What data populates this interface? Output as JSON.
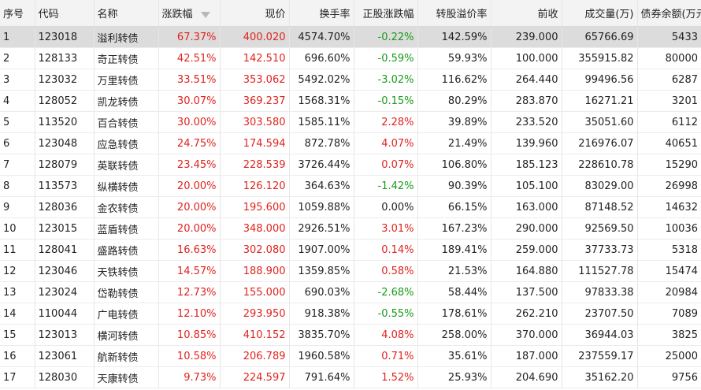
{
  "colors": {
    "up": "#e0231d",
    "down": "#1a9a1a",
    "flat": "#222222"
  },
  "headers": [
    "序号",
    "代码",
    "名称",
    "涨跌幅",
    "现价",
    "换手率",
    "正股涨跌幅",
    "转股溢价率",
    "前收",
    "成交量(万)",
    "债券余额(万元)"
  ],
  "sort_icon": "sort-descending-icon",
  "rows": [
    {
      "idx": "1",
      "code": "123018",
      "name": "溢利转债",
      "chg": "67.37%",
      "price": "400.020",
      "turnover": "4574.70%",
      "stock_chg": "-0.22%",
      "premium": "142.59%",
      "prev": "239.000",
      "volume": "65766.69",
      "balance": "5433"
    },
    {
      "idx": "2",
      "code": "128133",
      "name": "奇正转债",
      "chg": "42.51%",
      "price": "142.510",
      "turnover": "696.60%",
      "stock_chg": "-0.59%",
      "premium": "59.93%",
      "prev": "100.000",
      "volume": "355915.82",
      "balance": "80000"
    },
    {
      "idx": "3",
      "code": "123032",
      "name": "万里转债",
      "chg": "33.51%",
      "price": "353.062",
      "turnover": "5492.02%",
      "stock_chg": "-3.02%",
      "premium": "116.62%",
      "prev": "264.440",
      "volume": "99496.56",
      "balance": "6287"
    },
    {
      "idx": "4",
      "code": "128052",
      "name": "凯龙转债",
      "chg": "30.07%",
      "price": "369.237",
      "turnover": "1568.31%",
      "stock_chg": "-0.15%",
      "premium": "80.29%",
      "prev": "283.870",
      "volume": "16271.21",
      "balance": "3201"
    },
    {
      "idx": "5",
      "code": "113520",
      "name": "百合转债",
      "chg": "30.00%",
      "price": "303.580",
      "turnover": "1585.11%",
      "stock_chg": "2.28%",
      "premium": "39.89%",
      "prev": "233.520",
      "volume": "35051.60",
      "balance": "6112"
    },
    {
      "idx": "6",
      "code": "123048",
      "name": "应急转债",
      "chg": "24.75%",
      "price": "174.594",
      "turnover": "872.78%",
      "stock_chg": "4.07%",
      "premium": "21.49%",
      "prev": "139.960",
      "volume": "216976.07",
      "balance": "40651"
    },
    {
      "idx": "7",
      "code": "128079",
      "name": "英联转债",
      "chg": "23.45%",
      "price": "228.539",
      "turnover": "3726.44%",
      "stock_chg": "0.07%",
      "premium": "106.80%",
      "prev": "185.123",
      "volume": "228610.78",
      "balance": "15290"
    },
    {
      "idx": "8",
      "code": "113573",
      "name": "纵横转债",
      "chg": "20.00%",
      "price": "126.120",
      "turnover": "364.63%",
      "stock_chg": "-1.42%",
      "premium": "90.39%",
      "prev": "105.100",
      "volume": "83029.00",
      "balance": "26998"
    },
    {
      "idx": "9",
      "code": "128036",
      "name": "金农转债",
      "chg": "20.00%",
      "price": "195.600",
      "turnover": "1059.88%",
      "stock_chg": "0.00%",
      "premium": "66.15%",
      "prev": "163.000",
      "volume": "87148.52",
      "balance": "14632"
    },
    {
      "idx": "10",
      "code": "123015",
      "name": "蓝盾转债",
      "chg": "20.00%",
      "price": "348.000",
      "turnover": "2926.51%",
      "stock_chg": "3.01%",
      "premium": "167.23%",
      "prev": "290.000",
      "volume": "92569.50",
      "balance": "10036"
    },
    {
      "idx": "11",
      "code": "128041",
      "name": "盛路转债",
      "chg": "16.63%",
      "price": "302.080",
      "turnover": "1907.00%",
      "stock_chg": "0.14%",
      "premium": "189.41%",
      "prev": "259.000",
      "volume": "37733.73",
      "balance": "5318"
    },
    {
      "idx": "12",
      "code": "123046",
      "name": "天铁转债",
      "chg": "14.57%",
      "price": "188.900",
      "turnover": "1359.85%",
      "stock_chg": "0.58%",
      "premium": "21.53%",
      "prev": "164.880",
      "volume": "111527.78",
      "balance": "15474"
    },
    {
      "idx": "13",
      "code": "123024",
      "name": "岱勒转债",
      "chg": "12.73%",
      "price": "155.000",
      "turnover": "690.03%",
      "stock_chg": "-2.68%",
      "premium": "58.44%",
      "prev": "137.500",
      "volume": "97833.38",
      "balance": "20984"
    },
    {
      "idx": "14",
      "code": "110044",
      "name": "广电转债",
      "chg": "12.10%",
      "price": "293.950",
      "turnover": "918.38%",
      "stock_chg": "-0.55%",
      "premium": "178.61%",
      "prev": "262.210",
      "volume": "23707.50",
      "balance": "7089"
    },
    {
      "idx": "15",
      "code": "123013",
      "name": "横河转债",
      "chg": "10.85%",
      "price": "410.152",
      "turnover": "3835.70%",
      "stock_chg": "4.08%",
      "premium": "258.00%",
      "prev": "370.000",
      "volume": "36944.03",
      "balance": "3825"
    },
    {
      "idx": "16",
      "code": "123061",
      "name": "航新转债",
      "chg": "10.58%",
      "price": "206.789",
      "turnover": "1960.58%",
      "stock_chg": "0.71%",
      "premium": "35.61%",
      "prev": "187.000",
      "volume": "237559.17",
      "balance": "25000"
    },
    {
      "idx": "17",
      "code": "128030",
      "name": "天康转债",
      "chg": "9.73%",
      "price": "224.597",
      "turnover": "791.64%",
      "stock_chg": "1.52%",
      "premium": "25.93%",
      "prev": "204.690",
      "volume": "35162.20",
      "balance": "9756"
    }
  ]
}
